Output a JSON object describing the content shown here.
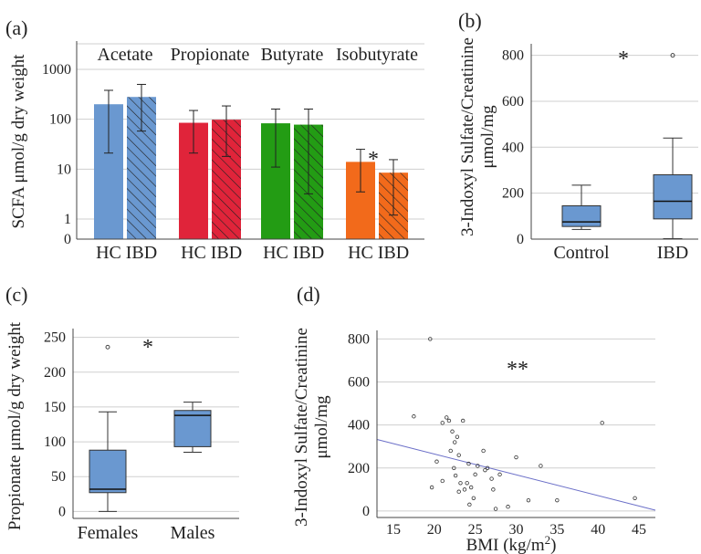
{
  "chart_data": [
    {
      "panel": "(a)",
      "type": "bar",
      "ylabel": "SCFA μmol/g dry weight",
      "yscale": "log",
      "yticks": [
        "0",
        "1",
        "10",
        "100",
        "1000"
      ],
      "groups": [
        {
          "name": "Acetate",
          "color": "#6a98d0",
          "bars": [
            {
              "label": "HC",
              "value": 200,
              "err_low": 21,
              "err_high": 380
            },
            {
              "label": "IBD",
              "value": 280,
              "err_low": 58,
              "err_high": 500
            }
          ]
        },
        {
          "name": "Propionate",
          "color": "#e0243a",
          "bars": [
            {
              "label": "HC",
              "value": 85,
              "err_low": 21,
              "err_high": 150
            },
            {
              "label": "IBD",
              "value": 98,
              "err_low": 18,
              "err_high": 185
            }
          ]
        },
        {
          "name": "Butyrate",
          "color": "#239c14",
          "bars": [
            {
              "label": "HC",
              "value": 83,
              "err_low": 11,
              "err_high": 160
            },
            {
              "label": "IBD",
              "value": 78,
              "err_low": 3.2,
              "err_high": 160
            }
          ]
        },
        {
          "name": "Isobutyrate",
          "color": "#f26a1b",
          "bars": [
            {
              "label": "HC",
              "value": 14,
              "err_low": 3.5,
              "err_high": 25
            },
            {
              "label": "IBD",
              "value": 8.5,
              "err_low": 1.2,
              "err_high": 15.5
            }
          ]
        }
      ],
      "annotation": "*"
    },
    {
      "panel": "(b)",
      "type": "box",
      "ylabel": "3-Indoxyl Sulfate/Creatinine\nμmol/mg",
      "ylim": [
        0,
        850
      ],
      "yticks": [
        0,
        200,
        400,
        600,
        800
      ],
      "categories": [
        "Control",
        "IBD"
      ],
      "boxes": [
        {
          "min": 42,
          "q1": 55,
          "median": 75,
          "q3": 145,
          "max": 235,
          "outliers": []
        },
        {
          "min": 2,
          "q1": 88,
          "median": 165,
          "q3": 280,
          "max": 440,
          "outliers": [
            800
          ]
        }
      ],
      "annotation": "*"
    },
    {
      "panel": "(c)",
      "type": "box",
      "ylabel": "Propionate μmol/g dry weight",
      "ylim": [
        -10,
        260
      ],
      "yticks": [
        0,
        50,
        100,
        150,
        200,
        250
      ],
      "categories": [
        "Females",
        "Males"
      ],
      "boxes": [
        {
          "min": 0,
          "q1": 27,
          "median": 32,
          "q3": 88,
          "max": 143,
          "outliers": [
            236
          ]
        },
        {
          "min": 85,
          "q1": 93,
          "median": 138,
          "q3": 145,
          "max": 157,
          "outliers": []
        }
      ],
      "annotation": "*"
    },
    {
      "panel": "(d)",
      "type": "scatter",
      "xlabel": "BMI (kg/m²)",
      "ylabel": "3-Indoxyl Sulfate/Creatinine\nμmol/mg",
      "xlim": [
        13,
        47
      ],
      "ylim": [
        -30,
        840
      ],
      "xticks": [
        15,
        20,
        25,
        30,
        35,
        40,
        45
      ],
      "yticks": [
        0,
        200,
        400,
        600,
        800
      ],
      "points": [
        [
          17.5,
          440
        ],
        [
          19.5,
          800
        ],
        [
          19.7,
          110
        ],
        [
          20.3,
          230
        ],
        [
          21.0,
          140
        ],
        [
          21.0,
          410
        ],
        [
          21.5,
          435
        ],
        [
          21.8,
          420
        ],
        [
          22.0,
          280
        ],
        [
          22.2,
          370
        ],
        [
          22.5,
          320
        ],
        [
          22.4,
          200
        ],
        [
          22.8,
          345
        ],
        [
          22.6,
          165
        ],
        [
          23.0,
          260
        ],
        [
          23.0,
          90
        ],
        [
          23.5,
          420
        ],
        [
          23.2,
          130
        ],
        [
          23.7,
          100
        ],
        [
          24.2,
          220
        ],
        [
          24.0,
          130
        ],
        [
          24.5,
          110
        ],
        [
          24.8,
          60
        ],
        [
          24.3,
          30
        ],
        [
          25.0,
          170
        ],
        [
          25.3,
          210
        ],
        [
          26.0,
          280
        ],
        [
          26.2,
          190
        ],
        [
          26.5,
          200
        ],
        [
          27.0,
          150
        ],
        [
          27.2,
          100
        ],
        [
          27.5,
          10
        ],
        [
          28.0,
          170
        ],
        [
          29.0,
          20
        ],
        [
          30.0,
          250
        ],
        [
          31.5,
          50
        ],
        [
          33.0,
          210
        ],
        [
          35.0,
          50
        ],
        [
          40.5,
          410
        ],
        [
          44.5,
          60
        ]
      ],
      "fit_line": {
        "x": [
          13,
          47
        ],
        "y": [
          333,
          4
        ]
      },
      "annotation": "**"
    }
  ]
}
